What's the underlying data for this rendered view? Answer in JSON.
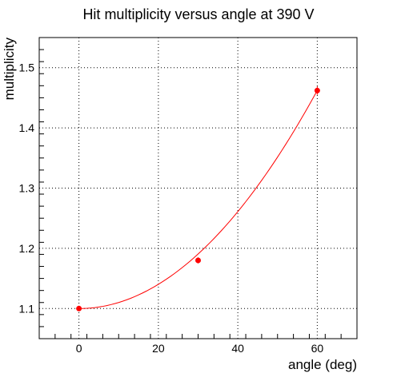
{
  "chart_data": {
    "type": "scatter",
    "title": "Hit multiplicity versus angle at 390 V",
    "xlabel": "angle (deg)",
    "ylabel": "multiplicity",
    "xlim": [
      -10,
      70
    ],
    "ylim": [
      1.05,
      1.55
    ],
    "x_ticks": [
      0,
      20,
      40,
      60
    ],
    "y_ticks": [
      1.1,
      1.2,
      1.3,
      1.4,
      1.5
    ],
    "x_tick_labels": [
      "0",
      "20",
      "40",
      "60"
    ],
    "y_tick_labels": [
      "1.1",
      "1.2",
      "1.3",
      "1.4",
      "1.5"
    ],
    "grid": true,
    "series": [
      {
        "x": [
          0,
          30,
          60
        ],
        "y": [
          1.1,
          1.18,
          1.462
        ],
        "yerr": [
          0.003,
          0.005,
          0.007
        ],
        "color": "#ff0000",
        "marker": "circle"
      }
    ],
    "fit": {
      "form": "quadratic",
      "coefficients": [
        1.1,
        0,
        0.0001006
      ],
      "x_range": [
        0,
        60
      ],
      "color": "#ff0000"
    }
  }
}
